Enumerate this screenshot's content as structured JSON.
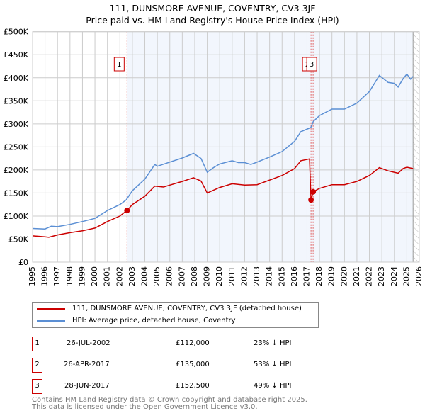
{
  "chart_data": {
    "type": "line",
    "title": "111, DUNSMORE AVENUE, COVENTRY, CV3 3JF",
    "subtitle": "Price paid vs. HM Land Registry's House Price Index (HPI)",
    "xlim": [
      1995,
      2026
    ],
    "ylim": [
      0,
      500000
    ],
    "x_ticks": [
      "1995",
      "1996",
      "1997",
      "1998",
      "1999",
      "2000",
      "2001",
      "2002",
      "2003",
      "2004",
      "2005",
      "2006",
      "2007",
      "2008",
      "2009",
      "2010",
      "2011",
      "2012",
      "2013",
      "2014",
      "2015",
      "2016",
      "2017",
      "2018",
      "2019",
      "2020",
      "2021",
      "2022",
      "2023",
      "2024",
      "2025",
      "2026"
    ],
    "y_ticks": [
      "£0",
      "£50K",
      "£100K",
      "£150K",
      "£200K",
      "£250K",
      "£300K",
      "£350K",
      "£400K",
      "£450K",
      "£500K"
    ],
    "grid": true,
    "series": [
      {
        "name": "111, DUNSMORE AVENUE, COVENTRY, CV3 3JF (detached house)",
        "color": "#cc0000",
        "points": [
          [
            1995,
            57
          ],
          [
            1996,
            55
          ],
          [
            1996.3,
            54
          ],
          [
            1997,
            59
          ],
          [
            1998,
            64
          ],
          [
            1999,
            68
          ],
          [
            2000,
            74
          ],
          [
            2001,
            88
          ],
          [
            2002,
            100
          ],
          [
            2002.57,
            112
          ],
          [
            2003,
            125
          ],
          [
            2004,
            143
          ],
          [
            2004.8,
            165
          ],
          [
            2005.5,
            163
          ],
          [
            2006,
            167
          ],
          [
            2007,
            175
          ],
          [
            2007.9,
            183
          ],
          [
            2008.5,
            176
          ],
          [
            2009,
            150
          ],
          [
            2010,
            162
          ],
          [
            2011,
            170
          ],
          [
            2012,
            167
          ],
          [
            2013,
            168
          ],
          [
            2014,
            178
          ],
          [
            2015,
            188
          ],
          [
            2016,
            203
          ],
          [
            2016.5,
            220
          ],
          [
            2017.2,
            224
          ],
          [
            2017.32,
            135
          ],
          [
            2017.49,
            152.5
          ],
          [
            2018,
            160
          ],
          [
            2019,
            168
          ],
          [
            2020,
            168
          ],
          [
            2021,
            175
          ],
          [
            2022,
            188
          ],
          [
            2022.8,
            205
          ],
          [
            2023.5,
            198
          ],
          [
            2024.3,
            193
          ],
          [
            2024.7,
            203
          ],
          [
            2025,
            206
          ],
          [
            2025.5,
            203
          ]
        ]
      },
      {
        "name": "HPI: Average price, detached house, Coventry",
        "color": "#5b8fd4",
        "points": [
          [
            1995,
            73
          ],
          [
            1996,
            72
          ],
          [
            1996.5,
            78
          ],
          [
            1997,
            77
          ],
          [
            1998,
            82
          ],
          [
            1999,
            88
          ],
          [
            2000,
            95
          ],
          [
            2001,
            112
          ],
          [
            2002,
            125
          ],
          [
            2002.5,
            135
          ],
          [
            2003,
            155
          ],
          [
            2004,
            180
          ],
          [
            2004.8,
            212
          ],
          [
            2005,
            208
          ],
          [
            2006,
            217
          ],
          [
            2007,
            226
          ],
          [
            2007.9,
            236
          ],
          [
            2008.5,
            225
          ],
          [
            2009,
            195
          ],
          [
            2009.5,
            205
          ],
          [
            2010,
            213
          ],
          [
            2011,
            220
          ],
          [
            2011.5,
            216
          ],
          [
            2012,
            216
          ],
          [
            2012.5,
            212
          ],
          [
            2013,
            217
          ],
          [
            2014,
            228
          ],
          [
            2015,
            240
          ],
          [
            2016,
            262
          ],
          [
            2016.5,
            283
          ],
          [
            2017.3,
            292
          ],
          [
            2017.5,
            305
          ],
          [
            2018,
            318
          ],
          [
            2019,
            332
          ],
          [
            2020,
            332
          ],
          [
            2021,
            345
          ],
          [
            2022,
            370
          ],
          [
            2022.8,
            405
          ],
          [
            2023.5,
            390
          ],
          [
            2024,
            388
          ],
          [
            2024.3,
            380
          ],
          [
            2024.7,
            398
          ],
          [
            2025,
            408
          ],
          [
            2025.3,
            397
          ],
          [
            2025.5,
            403
          ]
        ]
      }
    ],
    "sales": [
      {
        "label": "1",
        "x": 2002.57,
        "price": 112000
      },
      {
        "label": "2",
        "x": 2017.32,
        "price": 135000
      },
      {
        "label": "3",
        "x": 2017.49,
        "price": 152500
      }
    ],
    "legend_position": "bottom"
  },
  "legend": {
    "property": "111, DUNSMORE AVENUE, COVENTRY, CV3 3JF (detached house)",
    "hpi": "HPI: Average price, detached house, Coventry"
  },
  "transactions": [
    {
      "num": "1",
      "date": "26-JUL-2002",
      "price": "£112,000",
      "hpi": "23% ↓ HPI"
    },
    {
      "num": "2",
      "date": "26-APR-2017",
      "price": "£135,000",
      "hpi": "53% ↓ HPI"
    },
    {
      "num": "3",
      "date": "28-JUN-2017",
      "price": "£152,500",
      "hpi": "49% ↓ HPI"
    }
  ],
  "footer": {
    "line1": "Contains HM Land Registry data © Crown copyright and database right 2025.",
    "line2": "This data is licensed under the Open Government Licence v3.0."
  }
}
